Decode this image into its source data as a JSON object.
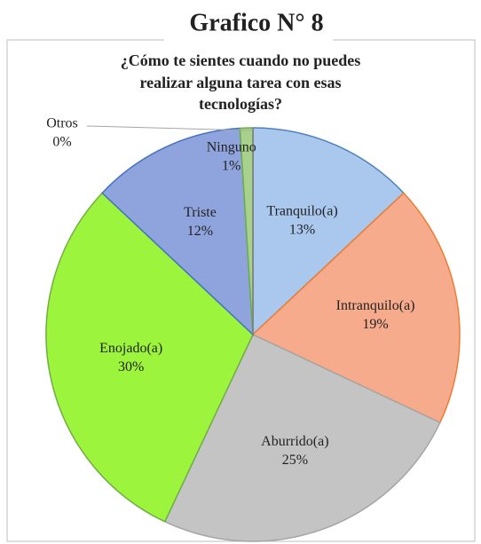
{
  "chart_data": {
    "type": "pie",
    "title": "Grafico N° 8",
    "subtitle": [
      "¿Cómo te sientes cuando no puedes",
      "realizar alguna tarea con esas",
      "tecnologías?"
    ],
    "categories": [
      "Tranquilo(a)",
      "Intranquilo(a)",
      "Aburrido(a)",
      "Enojado(a)",
      "Triste",
      "Ninguno",
      "Otros"
    ],
    "values": [
      13,
      19,
      25,
      30,
      12,
      1,
      0
    ],
    "value_labels": [
      "13%",
      "19%",
      "25%",
      "30%",
      "12%",
      "1%",
      "0%"
    ],
    "colors": [
      "#aac8ee",
      "#f6ab8c",
      "#c4c4c4",
      "#9cf53c",
      "#8fa4dc",
      "#a9d18e",
      "#7f7f7f"
    ],
    "edgecolors": [
      "#4f81bd",
      "#ed7d31",
      "#a5a5a5",
      "#70ad47",
      "#4472c4",
      "#70ad47",
      "#7f7f7f"
    ]
  }
}
